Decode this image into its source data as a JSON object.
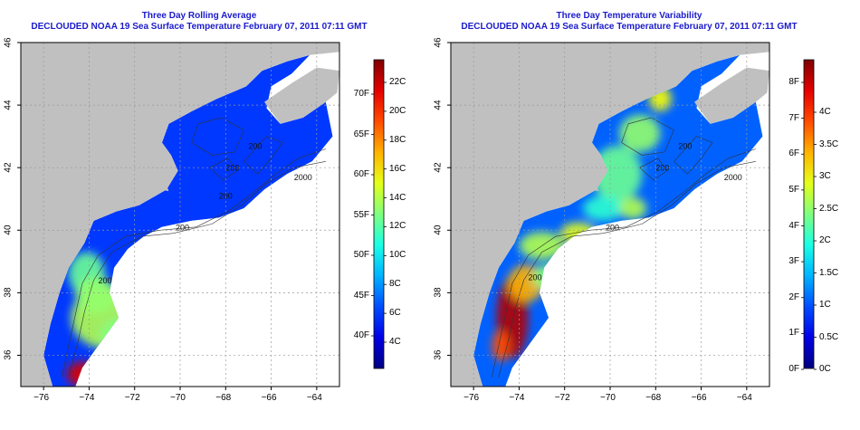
{
  "panels": {
    "left": {
      "title_line1": "Three Day Rolling Average",
      "title_line2": "DECLOUDED NOAA 19 Sea Surface Temperature February 07, 2011 07:11 GMT",
      "colorbar_colormap": "jet",
      "colorbar_left_labels": [
        "70F",
        "65F",
        "60F",
        "55F",
        "50F",
        "45F",
        "40F"
      ],
      "colorbar_right_labels": [
        "22C",
        "20C",
        "18C",
        "16C",
        "14C",
        "12C",
        "10C",
        "8C",
        "6C",
        "4C"
      ]
    },
    "right": {
      "title_line1": "Three Day Temperature Variability",
      "title_line2": "DECLOUDED NOAA 19 Sea Surface Temperature February 07, 2011 07:11 GMT",
      "colorbar_colormap": "jet",
      "colorbar_left_labels": [
        "8F",
        "7F",
        "6F",
        "5F",
        "4F",
        "3F",
        "2F",
        "1F",
        "0F"
      ],
      "colorbar_right_labels": [
        "4C",
        "3.5C",
        "3C",
        "2.5C",
        "2C",
        "1.5C",
        "1C",
        "0.5C",
        "0C"
      ]
    }
  },
  "axes": {
    "x_ticks": [
      "−76",
      "−74",
      "−72",
      "−70",
      "−68",
      "−66",
      "−64"
    ],
    "y_ticks": [
      "36",
      "38",
      "40",
      "42",
      "44",
      "46"
    ],
    "grid": "dotted"
  },
  "map": {
    "land_color": "#c0c0c0",
    "no_data_color": "#ffffff",
    "contour_labels_left": [
      "2000",
      "200",
      "200",
      "200",
      "200",
      "200"
    ],
    "contour_labels_right": [
      "2000",
      "200",
      "200",
      "200",
      "200"
    ]
  }
}
